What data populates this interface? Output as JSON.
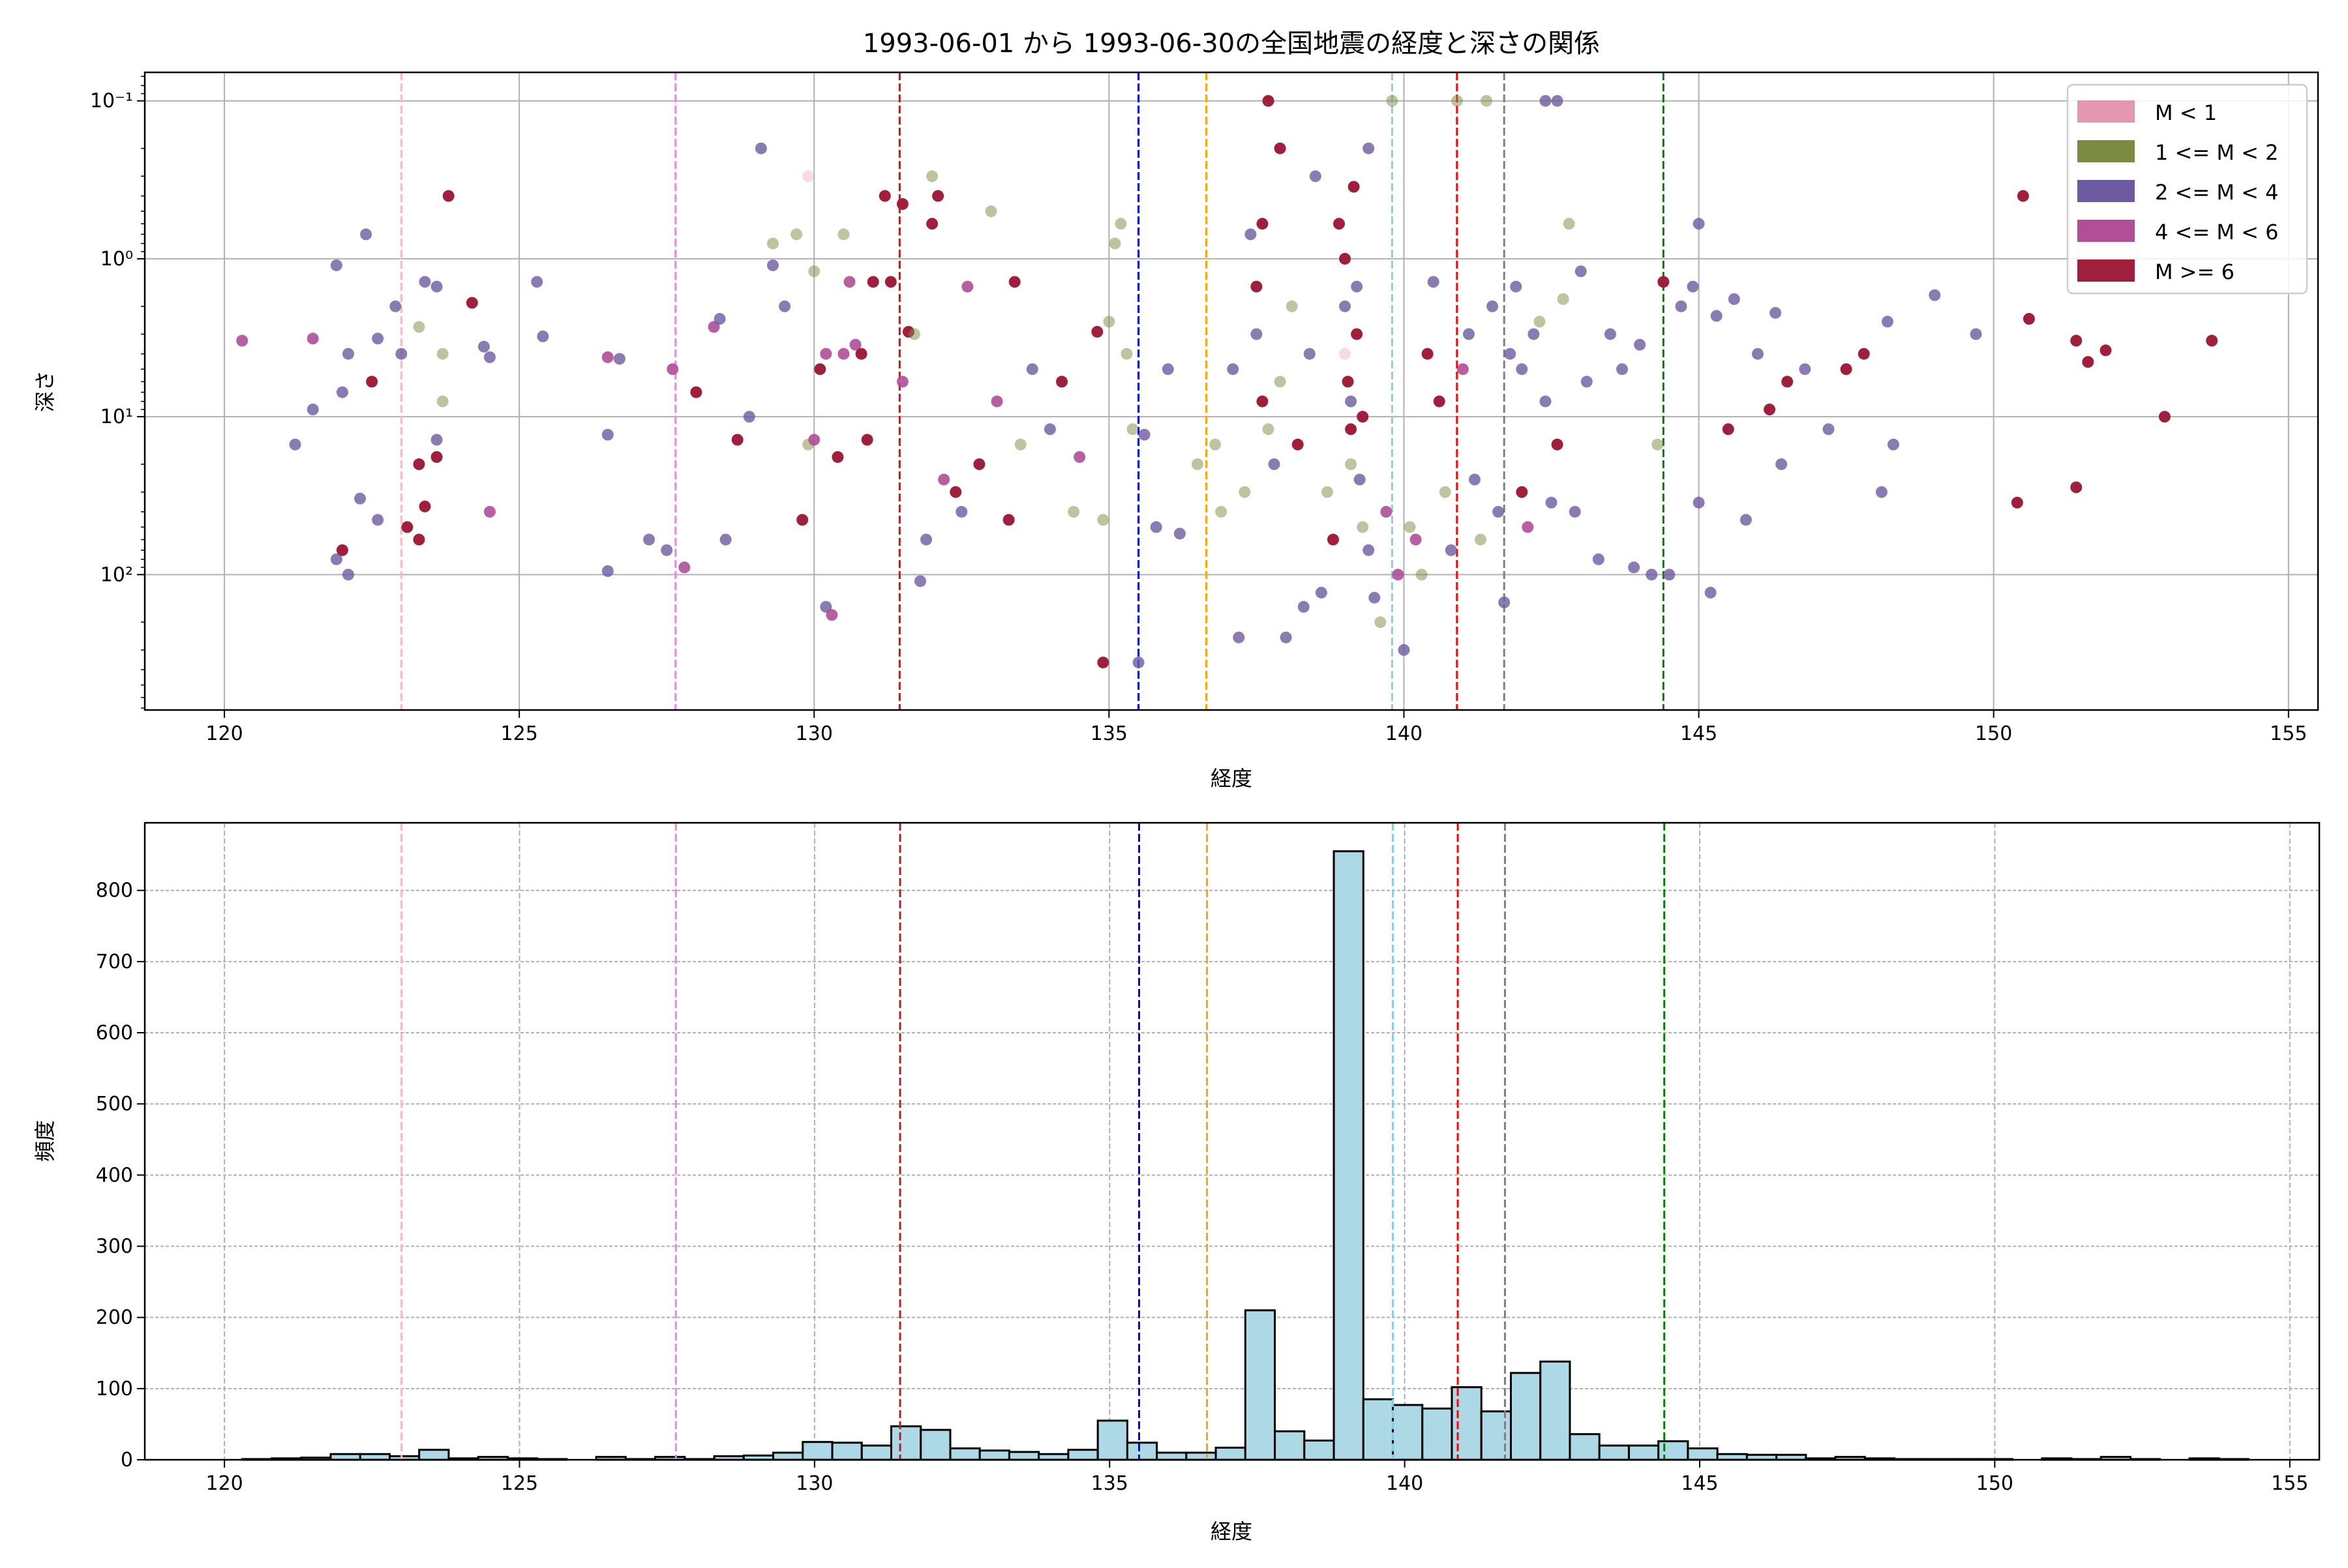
{
  "chart_data": [
    {
      "type": "scatter",
      "title": "1993-06-01 から 1993-06-30の全国地震の経度と深さの関係",
      "xlabel": "経度",
      "ylabel": "深さ",
      "xlim": [
        118.65,
        155.5
      ],
      "ylim": [
        720,
        0.066
      ],
      "yscale": "log",
      "y_inverted": true,
      "xticks": [
        120,
        125,
        130,
        135,
        140,
        145,
        150,
        155
      ],
      "yticks": [
        {
          "value": 0.1,
          "label": "10⁻¹"
        },
        {
          "value": 1,
          "label": "10⁰"
        },
        {
          "value": 10,
          "label": "10¹"
        },
        {
          "value": 100,
          "label": "10²"
        }
      ],
      "grid": true,
      "legend_position": "top-right",
      "legend": [
        {
          "label": "M < 1",
          "color": "#e597b1",
          "alpha": 0.35
        },
        {
          "label": "1 <= M < 2",
          "color": "#7b8b3f",
          "alpha": 0.5
        },
        {
          "label": "2 <= M < 4",
          "color": "#6d5aa0",
          "alpha": 0.8
        },
        {
          "label": "4 <= M < 6",
          "color": "#b04e97",
          "alpha": 0.9
        },
        {
          "label": "M >= 6",
          "color": "#a01f3d",
          "alpha": 1.0
        }
      ],
      "vlines": [
        {
          "x": 123.0,
          "color": "#ffb6c1"
        },
        {
          "x": 127.65,
          "color": "#ee82ee"
        },
        {
          "x": 131.45,
          "color": "#b22222"
        },
        {
          "x": 135.5,
          "color": "#0000ff"
        },
        {
          "x": 136.65,
          "color": "#ffa500"
        },
        {
          "x": 139.8,
          "color": "#87ceeb"
        },
        {
          "x": 140.9,
          "color": "#ff0000"
        },
        {
          "x": 141.7,
          "color": "#808080"
        },
        {
          "x": 144.4,
          "color": "#008000"
        }
      ],
      "points": [
        [
          120.3,
          3.3,
          3
        ],
        [
          121.2,
          15,
          2
        ],
        [
          121.5,
          9,
          2
        ],
        [
          121.5,
          3.2,
          3
        ],
        [
          121.9,
          1.1,
          2
        ],
        [
          122.0,
          7,
          2
        ],
        [
          122.1,
          4,
          2
        ],
        [
          121.9,
          80,
          2
        ],
        [
          122.1,
          100,
          2
        ],
        [
          122.0,
          70,
          4
        ],
        [
          122.4,
          0.7,
          2
        ],
        [
          122.5,
          6,
          4
        ],
        [
          122.6,
          3.2,
          2
        ],
        [
          122.3,
          33,
          2
        ],
        [
          122.6,
          45,
          2
        ],
        [
          122.9,
          2,
          2
        ],
        [
          123.0,
          4,
          2
        ],
        [
          123.3,
          2.7,
          1
        ],
        [
          123.4,
          1.4,
          2
        ],
        [
          123.6,
          1.5,
          2
        ],
        [
          123.3,
          20,
          4
        ],
        [
          123.4,
          37,
          4
        ],
        [
          123.1,
          50,
          4
        ],
        [
          123.3,
          60,
          4
        ],
        [
          123.6,
          18,
          4
        ],
        [
          123.6,
          14,
          2
        ],
        [
          123.7,
          8,
          1
        ],
        [
          123.7,
          4,
          1
        ],
        [
          123.8,
          0.4,
          4
        ],
        [
          124.2,
          1.9,
          4
        ],
        [
          124.4,
          3.6,
          2
        ],
        [
          124.5,
          4.2,
          2
        ],
        [
          124.5,
          40,
          3
        ],
        [
          125.3,
          1.4,
          2
        ],
        [
          125.4,
          3.1,
          2
        ],
        [
          126.5,
          4.2,
          3
        ],
        [
          126.7,
          4.3,
          2
        ],
        [
          126.5,
          13,
          2
        ],
        [
          126.5,
          95,
          2
        ],
        [
          127.2,
          60,
          2
        ],
        [
          127.5,
          70,
          2
        ],
        [
          127.6,
          5,
          3
        ],
        [
          127.8,
          90,
          3
        ],
        [
          128.0,
          7,
          4
        ],
        [
          128.3,
          2.7,
          3
        ],
        [
          128.4,
          2.4,
          2
        ],
        [
          128.5,
          60,
          2
        ],
        [
          128.7,
          14,
          4
        ],
        [
          128.9,
          10,
          2
        ],
        [
          129.1,
          0.2,
          2
        ],
        [
          129.3,
          0.8,
          1
        ],
        [
          129.3,
          1.1,
          2
        ],
        [
          129.5,
          2,
          2
        ],
        [
          129.7,
          0.7,
          1
        ],
        [
          129.8,
          45,
          4
        ],
        [
          129.9,
          0.3,
          0
        ],
        [
          129.9,
          15,
          1
        ],
        [
          130.0,
          1.2,
          1
        ],
        [
          130.1,
          5,
          4
        ],
        [
          130.2,
          4,
          3
        ],
        [
          130.0,
          14,
          3
        ],
        [
          130.2,
          160,
          2
        ],
        [
          130.3,
          180,
          3
        ],
        [
          130.4,
          18,
          4
        ],
        [
          130.5,
          4,
          3
        ],
        [
          130.5,
          0.7,
          1
        ],
        [
          130.6,
          1.4,
          3
        ],
        [
          130.7,
          3.5,
          3
        ],
        [
          130.8,
          4,
          4
        ],
        [
          130.9,
          14,
          4
        ],
        [
          131.0,
          1.4,
          4
        ],
        [
          131.2,
          0.4,
          4
        ],
        [
          131.3,
          1.4,
          4
        ],
        [
          131.5,
          0.45,
          4
        ],
        [
          131.5,
          6,
          3
        ],
        [
          131.6,
          2.9,
          4
        ],
        [
          131.7,
          3,
          1
        ],
        [
          131.8,
          110,
          2
        ],
        [
          131.9,
          60,
          2
        ],
        [
          132.0,
          0.6,
          4
        ],
        [
          132.1,
          0.4,
          4
        ],
        [
          132.0,
          0.3,
          1
        ],
        [
          132.2,
          25,
          3
        ],
        [
          132.4,
          30,
          4
        ],
        [
          132.5,
          40,
          2
        ],
        [
          132.6,
          1.5,
          3
        ],
        [
          132.8,
          20,
          4
        ],
        [
          133.0,
          0.5,
          1
        ],
        [
          133.1,
          8,
          3
        ],
        [
          133.3,
          45,
          4
        ],
        [
          133.4,
          1.4,
          4
        ],
        [
          133.5,
          15,
          1
        ],
        [
          133.7,
          5,
          2
        ],
        [
          134.0,
          12,
          2
        ],
        [
          134.2,
          6,
          4
        ],
        [
          134.5,
          18,
          3
        ],
        [
          134.8,
          2.9,
          4
        ],
        [
          134.4,
          40,
          1
        ],
        [
          134.9,
          45,
          1
        ],
        [
          135.0,
          2.5,
          1
        ],
        [
          135.1,
          0.8,
          1
        ],
        [
          135.2,
          0.6,
          1
        ],
        [
          135.3,
          4,
          1
        ],
        [
          135.4,
          12,
          1
        ],
        [
          135.5,
          360,
          2
        ],
        [
          134.9,
          360,
          4
        ],
        [
          135.6,
          13,
          2
        ],
        [
          135.8,
          50,
          2
        ],
        [
          136.0,
          5,
          2
        ],
        [
          136.2,
          55,
          2
        ],
        [
          136.5,
          20,
          1
        ],
        [
          136.8,
          15,
          1
        ],
        [
          136.9,
          40,
          1
        ],
        [
          137.1,
          5,
          2
        ],
        [
          137.2,
          250,
          2
        ],
        [
          137.3,
          30,
          1
        ],
        [
          137.4,
          0.7,
          2
        ],
        [
          137.5,
          1.5,
          4
        ],
        [
          137.5,
          3,
          2
        ],
        [
          137.6,
          0.6,
          4
        ],
        [
          137.6,
          8,
          4
        ],
        [
          137.7,
          12,
          1
        ],
        [
          137.7,
          0.1,
          4
        ],
        [
          137.8,
          20,
          2
        ],
        [
          137.9,
          0.2,
          4
        ],
        [
          137.9,
          6,
          1
        ],
        [
          138.0,
          250,
          2
        ],
        [
          138.1,
          2,
          1
        ],
        [
          138.2,
          15,
          4
        ],
        [
          138.3,
          160,
          2
        ],
        [
          138.4,
          4,
          2
        ],
        [
          138.5,
          0.3,
          2
        ],
        [
          138.6,
          130,
          2
        ],
        [
          138.7,
          30,
          1
        ],
        [
          138.8,
          60,
          4
        ],
        [
          138.9,
          0.6,
          4
        ],
        [
          139.0,
          1.0,
          4
        ],
        [
          139.0,
          2,
          2
        ],
        [
          139.0,
          4,
          0
        ],
        [
          139.05,
          6,
          4
        ],
        [
          139.1,
          8,
          2
        ],
        [
          139.1,
          12,
          4
        ],
        [
          139.1,
          20,
          1
        ],
        [
          139.15,
          0.35,
          4
        ],
        [
          139.2,
          1.5,
          2
        ],
        [
          139.2,
          3,
          4
        ],
        [
          139.25,
          25,
          2
        ],
        [
          139.3,
          10,
          4
        ],
        [
          139.3,
          50,
          1
        ],
        [
          139.4,
          0.2,
          2
        ],
        [
          139.4,
          70,
          2
        ],
        [
          139.5,
          140,
          2
        ],
        [
          139.6,
          200,
          1
        ],
        [
          139.7,
          40,
          3
        ],
        [
          139.8,
          0.1,
          1
        ],
        [
          139.9,
          100,
          3
        ],
        [
          140.0,
          300,
          2
        ],
        [
          140.1,
          50,
          1
        ],
        [
          140.2,
          60,
          3
        ],
        [
          140.3,
          100,
          1
        ],
        [
          140.4,
          4,
          4
        ],
        [
          140.5,
          1.4,
          2
        ],
        [
          140.6,
          8,
          4
        ],
        [
          140.7,
          30,
          1
        ],
        [
          140.8,
          70,
          2
        ],
        [
          140.9,
          0.1,
          1
        ],
        [
          141.0,
          5,
          3
        ],
        [
          141.1,
          3,
          2
        ],
        [
          141.2,
          25,
          2
        ],
        [
          141.3,
          60,
          1
        ],
        [
          141.4,
          0.1,
          1
        ],
        [
          141.5,
          2,
          2
        ],
        [
          141.6,
          40,
          2
        ],
        [
          141.7,
          150,
          2
        ],
        [
          141.8,
          4,
          2
        ],
        [
          141.9,
          1.5,
          2
        ],
        [
          142.0,
          5,
          2
        ],
        [
          142.0,
          30,
          4
        ],
        [
          142.1,
          50,
          3
        ],
        [
          142.2,
          3,
          2
        ],
        [
          142.3,
          2.5,
          1
        ],
        [
          142.4,
          0.1,
          2
        ],
        [
          142.4,
          8,
          2
        ],
        [
          142.5,
          35,
          2
        ],
        [
          142.6,
          0.1,
          2
        ],
        [
          142.6,
          15,
          4
        ],
        [
          142.7,
          1.8,
          1
        ],
        [
          142.8,
          0.6,
          1
        ],
        [
          142.9,
          40,
          2
        ],
        [
          143.0,
          1.2,
          2
        ],
        [
          143.1,
          6,
          2
        ],
        [
          143.3,
          80,
          2
        ],
        [
          143.5,
          3,
          2
        ],
        [
          143.7,
          5,
          2
        ],
        [
          143.9,
          90,
          2
        ],
        [
          144.0,
          3.5,
          2
        ],
        [
          144.2,
          100,
          2
        ],
        [
          144.3,
          15,
          1
        ],
        [
          144.4,
          1.4,
          4
        ],
        [
          144.5,
          100,
          2
        ],
        [
          144.7,
          2,
          2
        ],
        [
          144.9,
          1.5,
          2
        ],
        [
          145.0,
          0.6,
          2
        ],
        [
          145.0,
          35,
          2
        ],
        [
          145.2,
          130,
          2
        ],
        [
          145.3,
          2.3,
          2
        ],
        [
          145.5,
          12,
          4
        ],
        [
          145.6,
          1.8,
          2
        ],
        [
          145.8,
          45,
          2
        ],
        [
          146.0,
          4,
          2
        ],
        [
          146.2,
          9,
          4
        ],
        [
          146.3,
          2.2,
          2
        ],
        [
          146.4,
          20,
          2
        ],
        [
          146.5,
          6,
          4
        ],
        [
          146.8,
          5,
          2
        ],
        [
          147.2,
          12,
          2
        ],
        [
          147.5,
          5,
          4
        ],
        [
          147.8,
          4,
          4
        ],
        [
          148.1,
          30,
          2
        ],
        [
          148.2,
          2.5,
          2
        ],
        [
          148.3,
          15,
          2
        ],
        [
          149.0,
          1.7,
          2
        ],
        [
          149.7,
          3,
          2
        ],
        [
          150.4,
          35,
          4
        ],
        [
          150.5,
          0.4,
          4
        ],
        [
          150.6,
          2.4,
          4
        ],
        [
          151.4,
          28,
          4
        ],
        [
          151.4,
          3.3,
          4
        ],
        [
          151.6,
          4.5,
          4
        ],
        [
          151.9,
          3.8,
          4
        ],
        [
          152.9,
          10,
          4
        ],
        [
          153.7,
          3.3,
          4
        ]
      ]
    },
    {
      "type": "bar",
      "subtype": "histogram",
      "title": "",
      "xlabel": "経度",
      "ylabel": "頻度",
      "xlim": [
        118.65,
        155.5
      ],
      "ylim": [
        0,
        895
      ],
      "xticks": [
        120,
        125,
        130,
        135,
        140,
        145,
        150,
        155
      ],
      "yticks": [
        0,
        100,
        200,
        300,
        400,
        500,
        600,
        700,
        800
      ],
      "grid": true,
      "bar_color": "#add8e6",
      "bin_start": 120.3,
      "bin_width": 0.5,
      "values": [
        1,
        2,
        3,
        8,
        8,
        5,
        14,
        2,
        4,
        2,
        1,
        0,
        4,
        1,
        4,
        1,
        5,
        6,
        10,
        25,
        24,
        20,
        47,
        42,
        16,
        13,
        11,
        8,
        14,
        55,
        24,
        10,
        10,
        17,
        210,
        40,
        27,
        855,
        85,
        77,
        72,
        102,
        68,
        122,
        138,
        36,
        20,
        20,
        26,
        16,
        8,
        7,
        7,
        2,
        4,
        2,
        1,
        1,
        1,
        1,
        0,
        2,
        1,
        4,
        1,
        0,
        2,
        1
      ],
      "vlines": [
        {
          "x": 123.0,
          "color": "#ffb6c1"
        },
        {
          "x": 127.65,
          "color": "#ee82ee"
        },
        {
          "x": 131.45,
          "color": "#b22222"
        },
        {
          "x": 135.5,
          "color": "#0000ff"
        },
        {
          "x": 136.65,
          "color": "#ffa500"
        },
        {
          "x": 139.8,
          "color": "#87ceeb"
        },
        {
          "x": 140.9,
          "color": "#ff0000"
        },
        {
          "x": 141.7,
          "color": "#808080"
        },
        {
          "x": 144.4,
          "color": "#008000"
        }
      ]
    }
  ]
}
